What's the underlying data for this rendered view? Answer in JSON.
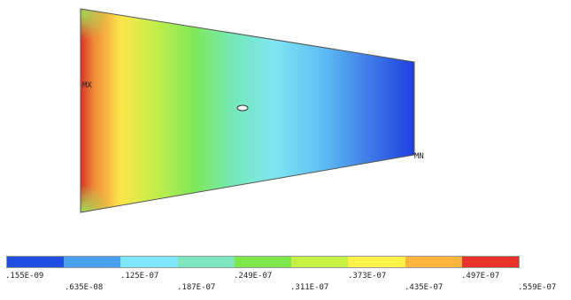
{
  "plot": {
    "max_label": "MX",
    "min_label": "MN"
  },
  "legend": {
    "colors": [
      "#1f4fe0",
      "#4aa0f0",
      "#7fe8ff",
      "#7fe6c0",
      "#7ee84a",
      "#c8f044",
      "#fff24a",
      "#ffb43c",
      "#e8322a"
    ],
    "values": [
      ".155E-09",
      ".635E-08",
      ".125E-07",
      ".187E-07",
      ".249E-07",
      ".311E-07",
      ".373E-07",
      ".435E-07",
      ".497E-07",
      ".559E-07"
    ]
  }
}
